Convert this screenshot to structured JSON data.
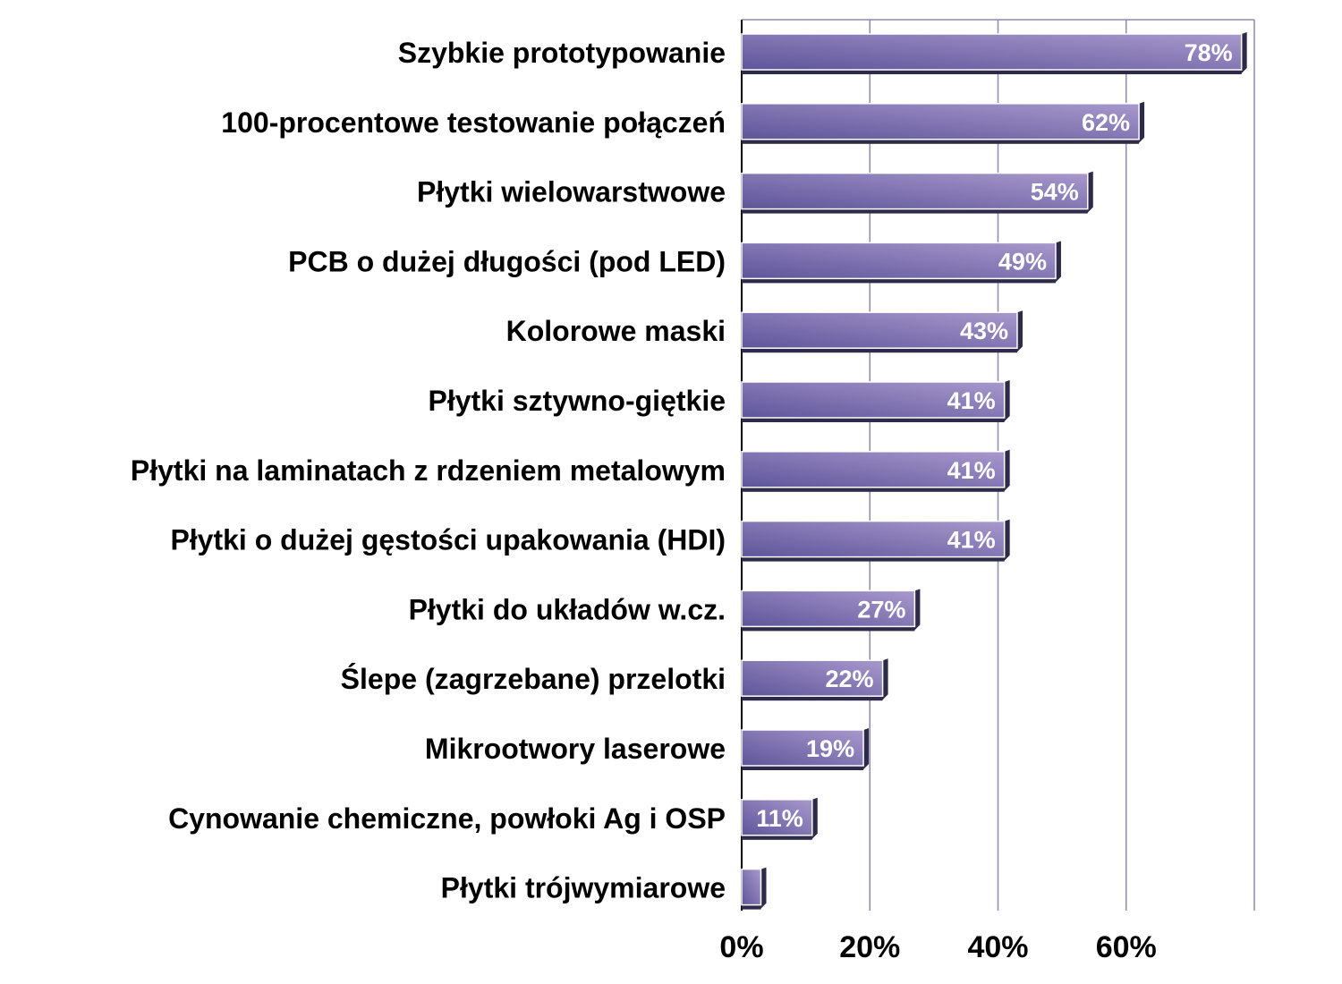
{
  "chart_data": {
    "type": "bar",
    "orientation": "horizontal",
    "categories": [
      "Szybkie prototypowanie",
      "100-procentowe testowanie połączeń",
      "Płytki wielowarstwowe",
      "PCB o dużej długości (pod LED)",
      "Kolorowe maski",
      "Płytki sztywno-giętkie",
      "Płytki na laminatach z rdzeniem metalowym",
      "Płytki o dużej gęstości upakowania (HDI)",
      "Płytki do układów w.cz.",
      "Ślepe (zagrzebane) przelotki",
      "Mikrootwory laserowe",
      "Cynowanie chemiczne, powłoki Ag i OSP",
      "Płytki trójwymiarowe"
    ],
    "values": [
      78,
      62,
      54,
      49,
      43,
      41,
      41,
      41,
      27,
      22,
      19,
      11,
      3
    ],
    "value_labels": [
      "78%",
      "62%",
      "54%",
      "49%",
      "43%",
      "41%",
      "41%",
      "41%",
      "27%",
      "22%",
      "19%",
      "11%",
      ""
    ],
    "xlim": [
      0,
      80
    ],
    "x_ticks": [
      0,
      20,
      40,
      60
    ],
    "x_tick_labels": [
      "0%",
      "20%",
      "40%",
      "60%"
    ],
    "grid": true,
    "legend": "none",
    "colors": {
      "bar_light": "#a898cc",
      "bar_dark": "#5e559a",
      "bar_edge": "#2e2a4a",
      "grid": "#9088b0",
      "axis": "#000000"
    }
  }
}
